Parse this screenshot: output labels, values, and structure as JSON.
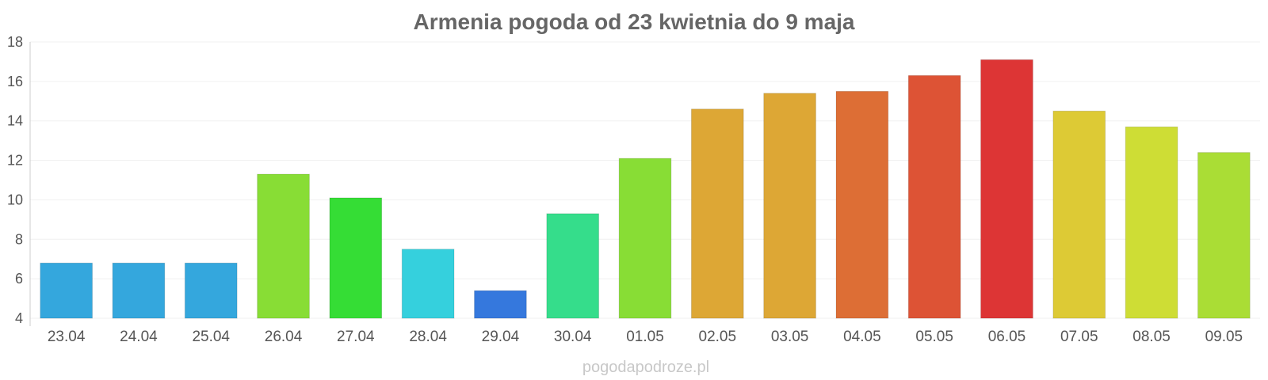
{
  "chart_data": {
    "type": "bar",
    "title": "Armenia pogoda od 23 kwietnia do 9 maja",
    "xlabel": "",
    "ylabel": "",
    "ylim": [
      4,
      18
    ],
    "yticks": [
      4,
      6,
      8,
      10,
      12,
      14,
      16,
      18
    ],
    "grid": true,
    "categories": [
      "23.04",
      "24.04",
      "25.04",
      "26.04",
      "27.04",
      "28.04",
      "29.04",
      "30.04",
      "01.05",
      "02.05",
      "03.05",
      "04.05",
      "05.05",
      "06.05",
      "07.05",
      "08.05",
      "09.05"
    ],
    "values": [
      6.8,
      6.8,
      6.8,
      11.3,
      10.1,
      7.5,
      5.4,
      9.3,
      12.1,
      14.6,
      15.4,
      15.5,
      16.3,
      17.1,
      14.5,
      13.7,
      12.4
    ],
    "colors": [
      "#34a7dd",
      "#34a7dd",
      "#34a7dd",
      "#88dd35",
      "#35dd35",
      "#35d0dd",
      "#3578dd",
      "#35dd8b",
      "#88dd35",
      "#dda735",
      "#dda735",
      "#dd6e35",
      "#dd5335",
      "#dd3535",
      "#ddca35",
      "#cedd35",
      "#aadd35"
    ]
  },
  "watermark": "pogodapodroze.pl"
}
